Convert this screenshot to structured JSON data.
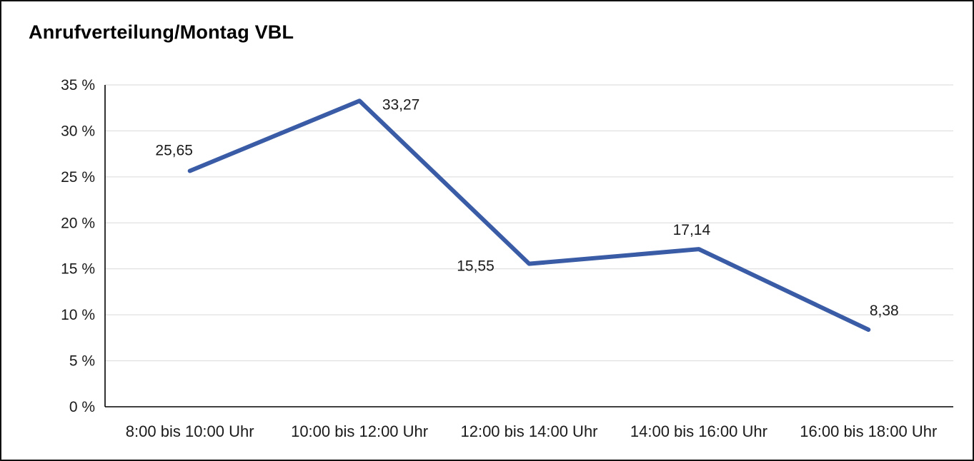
{
  "chart_data": {
    "type": "line",
    "title": "Anrufverteilung/Montag VBL",
    "categories": [
      "8:00 bis 10:00 Uhr",
      "10:00 bis 12:00 Uhr",
      "12:00 bis 14:00 Uhr",
      "14:00 bis 16:00 Uhr",
      "16:00 bis 18:00 Uhr"
    ],
    "values": [
      25.65,
      33.27,
      15.55,
      17.14,
      8.38
    ],
    "value_labels": [
      "25,65",
      "33,27",
      "15,55",
      "17,14",
      "8,38"
    ],
    "y_ticks": [
      "0 %",
      "5 %",
      "10 %",
      "15 %",
      "20 %",
      "25 %",
      "30 %",
      "35 %"
    ],
    "y_tick_values": [
      0,
      5,
      10,
      15,
      20,
      25,
      30,
      35
    ],
    "ylim": [
      0,
      35
    ],
    "xlabel": "",
    "ylabel": "",
    "grid": "horizontal",
    "legend": "none",
    "colors": {
      "line": "#3a5ba5",
      "gridline": "#d9d9d9",
      "axis": "#000000",
      "text": "#1a1a1a"
    }
  }
}
